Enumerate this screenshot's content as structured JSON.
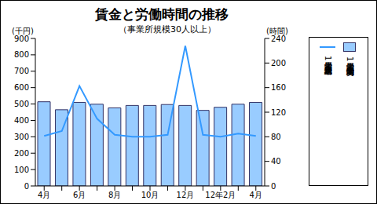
{
  "chart_data": {
    "type": "bar",
    "title": "賃金と労働時間の推移",
    "subtitle": "（事業所規模30人以上）",
    "ylabel": "(千円)",
    "y2label": "(時間)",
    "categories": [
      "4月",
      null,
      "6月",
      null,
      "8月",
      null,
      "10月",
      null,
      "12月",
      null,
      "12年2月",
      null,
      "4月"
    ],
    "series": [
      {
        "name": "常用労働者1人平均現金給与総額",
        "type": "line",
        "color": "#3399ff",
        "values": [
          305,
          335,
          610,
          410,
          312,
          300,
          300,
          312,
          855,
          312,
          300,
          320,
          305
        ]
      },
      {
        "name": "常用労働者1人平均総実労働時間",
        "type": "bar",
        "axis": "y2",
        "color": "#99ccff",
        "values": [
          137,
          124,
          136,
          133,
          127,
          131,
          131,
          132.5,
          131,
          123,
          128,
          133,
          136
        ]
      }
    ],
    "ylim": [
      0,
      900
    ],
    "yticks": [
      0,
      100,
      200,
      300,
      400,
      500,
      600,
      700,
      800,
      900
    ],
    "y2lim": [
      0,
      240
    ],
    "y2ticks": [
      0,
      40,
      80,
      120,
      160,
      200,
      240
    ],
    "legend": "right"
  }
}
